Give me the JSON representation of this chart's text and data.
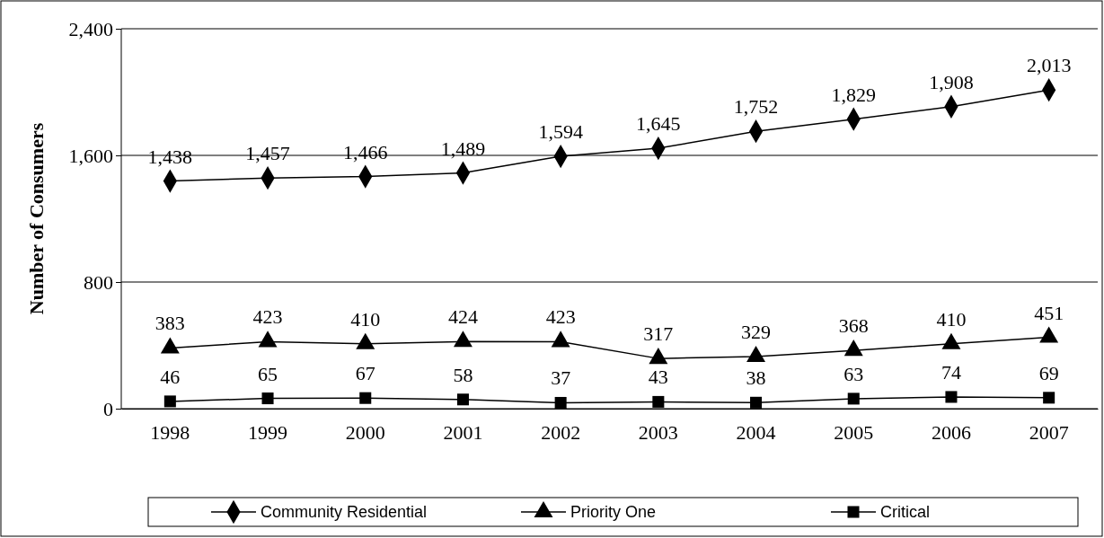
{
  "chart_data": {
    "type": "line",
    "ylabel": "Number of Consumers",
    "categories": [
      "1998",
      "1999",
      "2000",
      "2001",
      "2002",
      "2003",
      "2004",
      "2005",
      "2006",
      "2007"
    ],
    "series": [
      {
        "name": "Community Residential",
        "color": "#000000",
        "marker": "diamond",
        "values": [
          1438,
          1457,
          1466,
          1489,
          1594,
          1645,
          1752,
          1829,
          1908,
          2013
        ],
        "value_labels": [
          "1,438",
          "1,457",
          "1,466",
          "1,489",
          "1,594",
          "1,645",
          "1,752",
          "1,829",
          "1,908",
          "2,013"
        ]
      },
      {
        "name": "Priority One",
        "color": "#000000",
        "marker": "triangle",
        "values": [
          383,
          423,
          410,
          424,
          423,
          317,
          329,
          368,
          410,
          451
        ],
        "value_labels": [
          "383",
          "423",
          "410",
          "424",
          "423",
          "317",
          "329",
          "368",
          "410",
          "451"
        ]
      },
      {
        "name": "Critical",
        "color": "#000000",
        "marker": "square",
        "values": [
          46,
          65,
          67,
          58,
          37,
          43,
          38,
          63,
          74,
          69
        ],
        "value_labels": [
          "46",
          "65",
          "67",
          "58",
          "37",
          "43",
          "38",
          "63",
          "74",
          "69"
        ]
      }
    ],
    "ylim": [
      0,
      2400
    ],
    "yticks": [
      0,
      800,
      {
        "value": 1600,
        "label": "1,600"
      },
      {
        "value": 2400,
        "label": "2,400"
      }
    ],
    "grid": "y",
    "legend": "bottom",
    "line_style": "solid"
  }
}
